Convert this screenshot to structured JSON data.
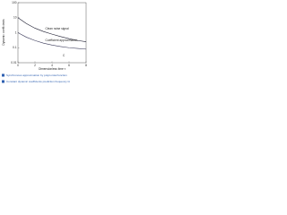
{
  "chart_data": {
    "type": "line",
    "ylabel": "Dynamic coefficients",
    "xlabel": "Dimensionless time τ",
    "x": [
      0,
      1,
      2,
      3,
      4,
      5,
      6,
      7,
      8
    ],
    "series": [
      {
        "name": "Clean noise signal",
        "color": "#1a1a2e",
        "values": [
          10,
          4,
          2,
          1.2,
          0.8,
          0.55,
          0.4,
          0.3,
          0.25
        ]
      },
      {
        "name": "Coefficient approximation",
        "color": "#3a3a5a",
        "values": [
          1,
          0.5,
          0.3,
          0.2,
          0.15,
          0.12,
          0.1,
          0.09,
          0.08
        ]
      }
    ],
    "annotation": "C",
    "notes": [
      "Synchronous approximation by polynomial function",
      "Constant dynamic coefficients prediction frequency Ω"
    ],
    "note_color": "#2d5fb0",
    "log_y": true,
    "xlim": [
      0,
      8
    ],
    "xticks": [
      0,
      2,
      4,
      6,
      8
    ],
    "ylim": [
      0.01,
      100
    ],
    "yticks": [
      0.01,
      0.1,
      1,
      10,
      100
    ]
  }
}
